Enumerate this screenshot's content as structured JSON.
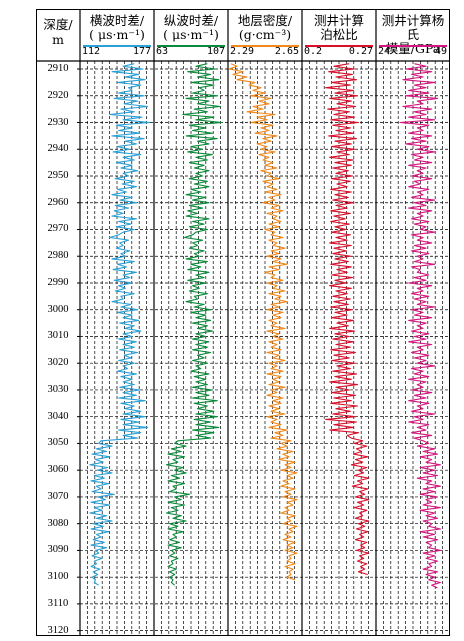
{
  "depth_header": "深度/\nm",
  "tracks": [
    {
      "title": "横波时差/\n( μs·m⁻¹)",
      "min": "112",
      "max": "177",
      "color": "#2aa0d6"
    },
    {
      "title": "纵波时差/\n( μs·m⁻¹)",
      "min": "63",
      "max": "107",
      "color": "#0a8a3a"
    },
    {
      "title": "地层密度/\n(g·cm⁻³)",
      "min": "2.29",
      "max": "2.65",
      "color": "#f08a1c"
    },
    {
      "title": "测井计算\n泊松比",
      "min": "0.2",
      "max": "0.27",
      "color": "#d8102c"
    },
    {
      "title": "测井计算杨氏\n模量/GPa",
      "min": "24",
      "max": "49",
      "color": "#d4167f"
    }
  ],
  "depth_ticks": [
    "2910",
    "2920",
    "2930",
    "2940",
    "2950",
    "2960",
    "2970",
    "2980",
    "2990",
    "3000",
    "3010",
    "3020",
    "3030",
    "3040",
    "3050",
    "3060",
    "3070",
    "3080",
    "3090",
    "3100",
    "3110",
    "3120"
  ],
  "chart_data": {
    "type": "line",
    "orientation": "vertical well-log tracks",
    "y_label": "深度/m",
    "ylim": [
      2907,
      3122
    ],
    "y_ticks": [
      2910,
      2920,
      2930,
      2940,
      2950,
      2960,
      2970,
      2980,
      2990,
      3000,
      3010,
      3020,
      3030,
      3040,
      3050,
      3060,
      3070,
      3080,
      3090,
      3100,
      3110,
      3120
    ],
    "depth_step": 1,
    "depth_start": 2908,
    "series": [
      {
        "name": "横波时差/( μs·m⁻¹)",
        "xlim": [
          112,
          177
        ],
        "color": "#2aa0d6",
        "values": [
          160,
          150,
          168,
          140,
          164,
          152,
          170,
          145,
          166,
          155,
          158,
          146,
          169,
          142,
          163,
          151,
          172,
          148,
          160,
          138,
          167,
          150,
          174,
          144,
          158,
          146,
          165,
          140,
          169,
          152,
          162,
          145,
          156,
          141,
          166,
          150,
          160,
          144,
          158,
          148,
          163,
          150,
          155,
          143,
          160,
          149,
          162,
          145,
          153,
          140,
          158,
          147,
          162,
          143,
          155,
          142,
          150,
          140,
          162,
          146,
          157,
          144,
          160,
          150,
          146,
          138,
          155,
          147,
          150,
          144,
          156,
          148,
          152,
          140,
          160,
          145,
          153,
          141,
          162,
          150,
          156,
          142,
          158,
          146,
          152,
          143,
          160,
          148,
          150,
          140,
          157,
          148,
          163,
          145,
          158,
          150,
          164,
          147,
          160,
          152,
          166,
          150,
          158,
          146,
          162,
          150,
          160,
          147,
          163,
          151,
          157,
          146,
          160,
          150,
          154,
          145,
          162,
          148,
          158,
          150,
          160,
          147,
          165,
          150,
          162,
          146,
          170,
          148,
          160,
          152,
          166,
          150,
          170,
          148,
          164,
          150,
          172,
          146,
          166,
          150,
          163,
          130,
          128,
          140,
          126,
          135,
          122,
          138,
          125,
          132,
          120,
          136,
          127,
          140,
          124,
          133,
          121,
          137,
          126,
          130,
          122,
          142,
          127,
          134,
          121,
          138,
          124,
          131,
          120,
          135,
          126,
          140,
          123,
          132,
          121,
          137,
          126,
          130,
          123,
          133,
          121,
          135,
          125,
          128,
          122,
          131,
          124,
          126,
          121,
          129,
          123,
          127,
          122,
          125,
          124,
          128
        ]
      },
      {
        "name": "纵波时差/( μs·m⁻¹)",
        "xlim": [
          63,
          107
        ],
        "color": "#0a8a3a",
        "values": [
          95,
          88,
          100,
          83,
          97,
          89,
          102,
          85,
          99,
          90,
          93,
          86,
          101,
          82,
          96,
          89,
          103,
          87,
          95,
          80,
          99,
          88,
          104,
          84,
          94,
          86,
          98,
          82,
          101,
          89,
          96,
          85,
          92,
          83,
          98,
          88,
          95,
          84,
          93,
          87,
          96,
          88,
          92,
          84,
          95,
          87,
          96,
          85,
          91,
          82,
          94,
          86,
          96,
          84,
          92,
          83,
          89,
          82,
          96,
          86,
          93,
          84,
          95,
          88,
          86,
          81,
          92,
          86,
          89,
          84,
          93,
          87,
          90,
          82,
          95,
          85,
          91,
          83,
          96,
          88,
          93,
          83,
          94,
          86,
          90,
          84,
          95,
          87,
          89,
          82,
          93,
          87,
          97,
          85,
          94,
          88,
          97,
          86,
          95,
          89,
          98,
          88,
          94,
          86,
          96,
          88,
          95,
          86,
          97,
          89,
          93,
          86,
          95,
          88,
          91,
          85,
          96,
          87,
          94,
          88,
          95,
          86,
          98,
          88,
          96,
          86,
          101,
          87,
          95,
          89,
          99,
          88,
          101,
          87,
          97,
          88,
          102,
          86,
          99,
          88,
          97,
          77,
          75,
          82,
          73,
          79,
          71,
          81,
          74,
          77,
          70,
          80,
          75,
          82,
          73,
          78,
          71,
          81,
          74,
          76,
          72,
          84,
          75,
          79,
          71,
          81,
          73,
          77,
          70,
          79,
          74,
          82,
          72,
          77,
          71,
          80,
          74,
          76,
          72,
          78,
          71,
          79,
          73,
          75,
          72,
          77,
          73,
          74,
          71,
          76,
          72,
          75,
          72,
          74,
          73,
          75
        ]
      },
      {
        "name": "地层密度/(g·cm⁻³)",
        "xlim": [
          2.29,
          2.65
        ],
        "color": "#f08a1c",
        "values": [
          2.3,
          2.33,
          2.29,
          2.36,
          2.31,
          2.38,
          2.33,
          2.42,
          2.39,
          2.45,
          2.41,
          2.47,
          2.4,
          2.5,
          2.44,
          2.49,
          2.41,
          2.46,
          2.38,
          2.52,
          2.43,
          2.48,
          2.4,
          2.51,
          2.45,
          2.49,
          2.42,
          2.53,
          2.46,
          2.5,
          2.43,
          2.48,
          2.45,
          2.52,
          2.44,
          2.49,
          2.46,
          2.51,
          2.47,
          2.53,
          2.45,
          2.5,
          2.48,
          2.54,
          2.46,
          2.51,
          2.48,
          2.53,
          2.47,
          2.55,
          2.49,
          2.52,
          2.46,
          2.54,
          2.5,
          2.56,
          2.48,
          2.53,
          2.51,
          2.55,
          2.49,
          2.54,
          2.47,
          2.52,
          2.5,
          2.56,
          2.49,
          2.53,
          2.51,
          2.57,
          2.5,
          2.54,
          2.48,
          2.55,
          2.51,
          2.58,
          2.49,
          2.54,
          2.47,
          2.52,
          2.5,
          2.56,
          2.48,
          2.53,
          2.51,
          2.57,
          2.49,
          2.55,
          2.52,
          2.58,
          2.5,
          2.54,
          2.48,
          2.56,
          2.51,
          2.55,
          2.49,
          2.53,
          2.5,
          2.57,
          2.48,
          2.54,
          2.51,
          2.56,
          2.49,
          2.53,
          2.5,
          2.55,
          2.48,
          2.54,
          2.51,
          2.57,
          2.49,
          2.53,
          2.5,
          2.56,
          2.48,
          2.55,
          2.51,
          2.54,
          2.49,
          2.57,
          2.5,
          2.53,
          2.48,
          2.56,
          2.51,
          2.55,
          2.49,
          2.54,
          2.5,
          2.57,
          2.48,
          2.53,
          2.5,
          2.55,
          2.49,
          2.58,
          2.52,
          2.56,
          2.5,
          2.6,
          2.55,
          2.58,
          2.53,
          2.61,
          2.56,
          2.59,
          2.54,
          2.62,
          2.57,
          2.6,
          2.55,
          2.63,
          2.58,
          2.61,
          2.56,
          2.59,
          2.55,
          2.62,
          2.57,
          2.6,
          2.56,
          2.63,
          2.58,
          2.61,
          2.57,
          2.59,
          2.55,
          2.62,
          2.58,
          2.6,
          2.56,
          2.63,
          2.59,
          2.61,
          2.57,
          2.6,
          2.56,
          2.62,
          2.58,
          2.61,
          2.57,
          2.63,
          2.59,
          2.6,
          2.58,
          2.62,
          2.57,
          2.61,
          2.59,
          2.6,
          2.58,
          2.62
        ]
      },
      {
        "name": "测井计算泊松比",
        "xlim": [
          0.2,
          0.27
        ],
        "color": "#d8102c",
        "values": [
          0.245,
          0.23,
          0.25,
          0.225,
          0.248,
          0.232,
          0.252,
          0.228,
          0.246,
          0.222,
          0.249,
          0.231,
          0.253,
          0.226,
          0.247,
          0.233,
          0.251,
          0.224,
          0.245,
          0.23,
          0.25,
          0.227,
          0.254,
          0.229,
          0.246,
          0.232,
          0.249,
          0.225,
          0.252,
          0.231,
          0.247,
          0.228,
          0.25,
          0.233,
          0.245,
          0.226,
          0.249,
          0.231,
          0.247,
          0.229,
          0.244,
          0.232,
          0.248,
          0.228,
          0.246,
          0.233,
          0.243,
          0.227,
          0.247,
          0.231,
          0.244,
          0.229,
          0.249,
          0.232,
          0.243,
          0.227,
          0.246,
          0.23,
          0.241,
          0.227,
          0.245,
          0.231,
          0.242,
          0.228,
          0.246,
          0.232,
          0.243,
          0.226,
          0.247,
          0.23,
          0.242,
          0.229,
          0.246,
          0.231,
          0.244,
          0.227,
          0.247,
          0.233,
          0.243,
          0.228,
          0.248,
          0.231,
          0.242,
          0.226,
          0.247,
          0.232,
          0.243,
          0.229,
          0.246,
          0.23,
          0.244,
          0.227,
          0.248,
          0.231,
          0.243,
          0.228,
          0.249,
          0.233,
          0.244,
          0.226,
          0.25,
          0.231,
          0.245,
          0.229,
          0.249,
          0.232,
          0.246,
          0.227,
          0.251,
          0.23,
          0.245,
          0.228,
          0.25,
          0.233,
          0.246,
          0.229,
          0.252,
          0.231,
          0.247,
          0.226,
          0.253,
          0.232,
          0.245,
          0.228,
          0.251,
          0.23,
          0.247,
          0.227,
          0.253,
          0.232,
          0.246,
          0.229,
          0.251,
          0.222,
          0.252,
          0.23,
          0.249,
          0.226,
          0.254,
          0.243,
          0.247,
          0.258,
          0.25,
          0.262,
          0.252,
          0.257,
          0.249,
          0.263,
          0.251,
          0.258,
          0.247,
          0.262,
          0.254,
          0.259,
          0.25,
          0.264,
          0.253,
          0.258,
          0.248,
          0.263,
          0.255,
          0.26,
          0.251,
          0.264,
          0.253,
          0.259,
          0.25,
          0.262,
          0.255,
          0.258,
          0.251,
          0.264,
          0.254,
          0.26,
          0.252,
          0.263,
          0.255,
          0.259,
          0.251,
          0.262,
          0.256,
          0.26,
          0.252,
          0.264,
          0.255,
          0.259,
          0.253,
          0.262,
          0.256,
          0.26,
          0.254,
          0.263
        ]
      },
      {
        "name": "测井计算杨氏模量/GPa",
        "xlim": [
          24,
          49
        ],
        "color": "#d4167f",
        "values": [
          37,
          41,
          34,
          43,
          36,
          40,
          33,
          44,
          37,
          41,
          35,
          42,
          34,
          45,
          38,
          40,
          33,
          43,
          37,
          41,
          35,
          44,
          32,
          42,
          38,
          40,
          35,
          43,
          36,
          41,
          34,
          42,
          38,
          44,
          36,
          40,
          37,
          43,
          35,
          41,
          38,
          40,
          36,
          43,
          37,
          39,
          35,
          42,
          38,
          40,
          36,
          44,
          37,
          41,
          35,
          43,
          38,
          40,
          36,
          42,
          37,
          41,
          39,
          44,
          36,
          40,
          38,
          43,
          37,
          41,
          36,
          42,
          38,
          40,
          37,
          44,
          36,
          39,
          38,
          42,
          37,
          41,
          35,
          43,
          38,
          40,
          36,
          42,
          37,
          41,
          38,
          44,
          36,
          40,
          37,
          43,
          35,
          41,
          38,
          40,
          36,
          42,
          37,
          41,
          35,
          43,
          38,
          40,
          36,
          42,
          37,
          41,
          38,
          44,
          36,
          40,
          37,
          42,
          35,
          41,
          38,
          40,
          36,
          43,
          37,
          41,
          35,
          42,
          38,
          40,
          36,
          44,
          37,
          40,
          35,
          42,
          38,
          41,
          36,
          43,
          37,
          40,
          42,
          38,
          44,
          40,
          45,
          39,
          43,
          41,
          46,
          39,
          44,
          40,
          45,
          38,
          43,
          41,
          46,
          40,
          44,
          39,
          45,
          41,
          43,
          40,
          46,
          39,
          44,
          41,
          45,
          40,
          43,
          42,
          46,
          39,
          44,
          40,
          45,
          41,
          43,
          42,
          46,
          40,
          44,
          41,
          45,
          42,
          43,
          40,
          45,
          41,
          44,
          42,
          46,
          43,
          45
        ]
      }
    ]
  }
}
